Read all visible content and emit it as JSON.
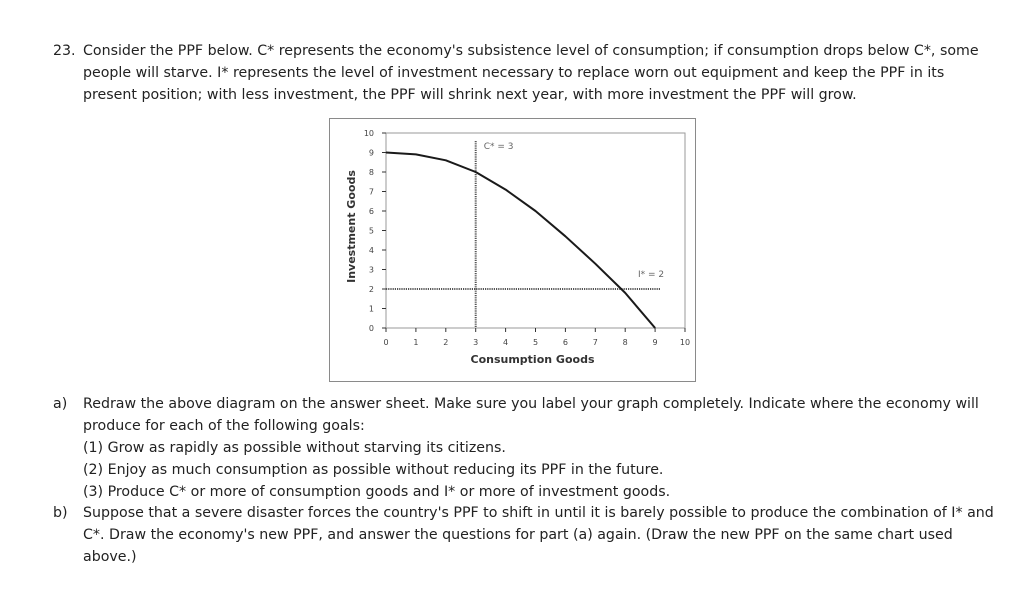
{
  "question": {
    "number": "23.",
    "lines": [
      "Consider the PPF below. C* represents the economy's subsistence level of consumption; if consumption drops below C*, some",
      "people will starve. I* represents the level of investment necessary to replace worn out equipment and keep the PPF in its",
      "present position; with less investment, the PPF will shrink next year, with more investment the PPF will grow."
    ]
  },
  "chart_data": {
    "type": "line",
    "xlabel": "Consumption Goods",
    "ylabel": "Investment Goods",
    "xlim": [
      0,
      10
    ],
    "ylim": [
      0,
      10
    ],
    "x_ticks": [
      "0",
      "1",
      "2",
      "3",
      "4",
      "5",
      "6",
      "7",
      "8",
      "9",
      "10"
    ],
    "y_ticks": [
      "0",
      "1",
      "2",
      "3",
      "4",
      "5",
      "6",
      "7",
      "8",
      "9",
      "10"
    ],
    "series": [
      {
        "x": [
          0,
          1,
          2,
          3,
          4,
          5,
          6,
          7,
          8,
          9
        ],
        "y": [
          9,
          8.9,
          8.6,
          8.0,
          7.1,
          6.0,
          4.7,
          3.3,
          1.8,
          0
        ]
      }
    ],
    "reference_lines": [
      {
        "orientation": "vertical",
        "value": 3,
        "label": "C* = 3"
      },
      {
        "orientation": "horizontal",
        "value": 2,
        "label": "I* = 2"
      }
    ],
    "grid": false,
    "line_color": "#1a1a1a",
    "reference_color": "#555555"
  },
  "parts": [
    {
      "label": "a)",
      "lines": [
        "Redraw the above diagram on the answer sheet. Make sure you label your graph completely. Indicate where the economy will",
        "produce for each of the following goals:",
        "(1) Grow as rapidly as possible without starving its citizens.",
        "(2) Enjoy as much consumption as possible without reducing its PPF in the future.",
        "(3) Produce C* or more of consumption goods and I* or more of investment goods."
      ]
    },
    {
      "label": "b)",
      "lines": [
        "Suppose that a severe disaster forces the country's PPF to shift in until it is barely possible to produce the combination of I* and",
        "C*. Draw the economy's new PPF, and answer the questions for part (a) again. (Draw the new PPF on the same chart used",
        "above.)"
      ]
    }
  ]
}
